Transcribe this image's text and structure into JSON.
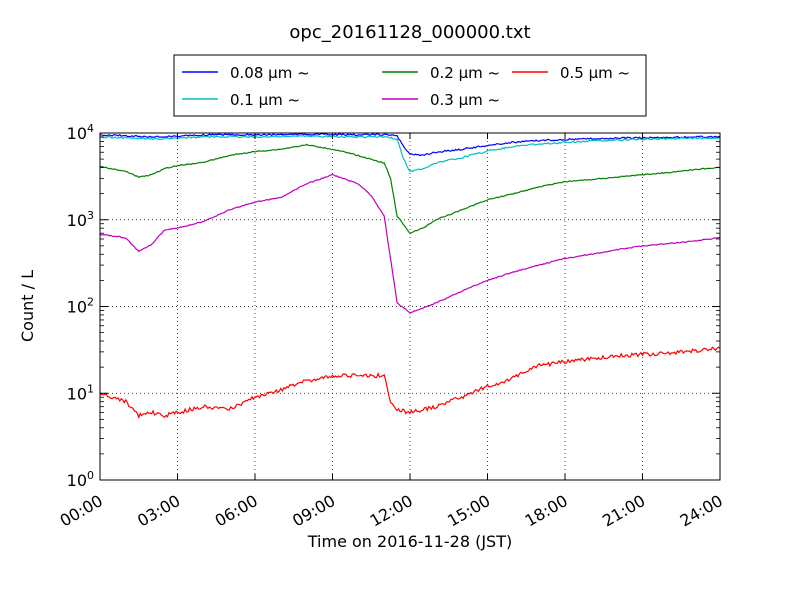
{
  "chart_data": {
    "type": "line",
    "title": "opc_20161128_000000.txt",
    "xlabel": "Time on 2016-11-28 (JST)",
    "ylabel": "Count / L",
    "xlim": [
      "00:00",
      "24:00"
    ],
    "ylim": [
      1,
      10000
    ],
    "yscale": "log",
    "grid": true,
    "legend_position": "top-center",
    "xticks": [
      "00:00",
      "03:00",
      "06:00",
      "09:00",
      "12:00",
      "15:00",
      "18:00",
      "21:00",
      "24:00"
    ],
    "yticks": [
      {
        "base": "10",
        "exp": "0",
        "value": 1
      },
      {
        "base": "10",
        "exp": "1",
        "value": 10
      },
      {
        "base": "10",
        "exp": "2",
        "value": 100
      },
      {
        "base": "10",
        "exp": "3",
        "value": 1000
      },
      {
        "base": "10",
        "exp": "4",
        "value": 10000
      }
    ],
    "series": [
      {
        "name": "0.08 μm ~",
        "color": "#0000ff",
        "points": [
          [
            "00:00",
            9500
          ],
          [
            "01:00",
            9300
          ],
          [
            "02:00",
            9000
          ],
          [
            "03:00",
            9200
          ],
          [
            "04:00",
            9500
          ],
          [
            "05:00",
            9600
          ],
          [
            "06:00",
            9500
          ],
          [
            "07:00",
            9600
          ],
          [
            "08:00",
            9700
          ],
          [
            "09:00",
            9600
          ],
          [
            "10:00",
            9500
          ],
          [
            "11:00",
            9600
          ],
          [
            "11:30",
            9200
          ],
          [
            "11:45",
            7000
          ],
          [
            "12:00",
            5800
          ],
          [
            "12:30",
            5500
          ],
          [
            "13:00",
            6000
          ],
          [
            "14:00",
            6500
          ],
          [
            "15:00",
            7200
          ],
          [
            "16:00",
            7800
          ],
          [
            "17:00",
            8200
          ],
          [
            "18:00",
            8400
          ],
          [
            "19:00",
            8600
          ],
          [
            "20:00",
            8700
          ],
          [
            "21:00",
            8800
          ],
          [
            "22:00",
            8900
          ],
          [
            "23:00",
            9000
          ],
          [
            "24:00",
            9100
          ]
        ]
      },
      {
        "name": "0.1 μm ~",
        "color": "#00bfbf",
        "points": [
          [
            "00:00",
            9000
          ],
          [
            "01:00",
            8800
          ],
          [
            "02:00",
            8500
          ],
          [
            "03:00",
            8700
          ],
          [
            "04:00",
            9000
          ],
          [
            "05:00",
            9100
          ],
          [
            "06:00",
            9000
          ],
          [
            "07:00",
            9100
          ],
          [
            "08:00",
            9200
          ],
          [
            "09:00",
            9100
          ],
          [
            "10:00",
            9000
          ],
          [
            "11:00",
            9100
          ],
          [
            "11:30",
            8500
          ],
          [
            "11:45",
            5000
          ],
          [
            "12:00",
            3600
          ],
          [
            "12:30",
            3900
          ],
          [
            "13:00",
            4500
          ],
          [
            "14:00",
            5200
          ],
          [
            "15:00",
            6200
          ],
          [
            "16:00",
            7000
          ],
          [
            "17:00",
            7500
          ],
          [
            "18:00",
            7800
          ],
          [
            "19:00",
            8100
          ],
          [
            "20:00",
            8300
          ],
          [
            "21:00",
            8500
          ],
          [
            "22:00",
            8600
          ],
          [
            "23:00",
            8700
          ],
          [
            "24:00",
            8800
          ]
        ]
      },
      {
        "name": "0.2 μm ~",
        "color": "#008000",
        "points": [
          [
            "00:00",
            4100
          ],
          [
            "01:00",
            3600
          ],
          [
            "01:30",
            3100
          ],
          [
            "02:00",
            3300
          ],
          [
            "02:30",
            3900
          ],
          [
            "03:00",
            4200
          ],
          [
            "04:00",
            4600
          ],
          [
            "05:00",
            5500
          ],
          [
            "06:00",
            6100
          ],
          [
            "07:00",
            6500
          ],
          [
            "08:00",
            7300
          ],
          [
            "09:00",
            6500
          ],
          [
            "10:00",
            5500
          ],
          [
            "11:00",
            4500
          ],
          [
            "11:15",
            3000
          ],
          [
            "11:30",
            1100
          ],
          [
            "12:00",
            700
          ],
          [
            "12:30",
            800
          ],
          [
            "13:00",
            1000
          ],
          [
            "14:00",
            1300
          ],
          [
            "15:00",
            1700
          ],
          [
            "16:00",
            2000
          ],
          [
            "17:00",
            2400
          ],
          [
            "18:00",
            2750
          ],
          [
            "19:00",
            2900
          ],
          [
            "20:00",
            3100
          ],
          [
            "21:00",
            3300
          ],
          [
            "22:00",
            3500
          ],
          [
            "23:00",
            3800
          ],
          [
            "24:00",
            4000
          ]
        ]
      },
      {
        "name": "0.3 μm ~",
        "color": "#bf00bf",
        "points": [
          [
            "00:00",
            680
          ],
          [
            "01:00",
            620
          ],
          [
            "01:30",
            430
          ],
          [
            "02:00",
            520
          ],
          [
            "02:30",
            760
          ],
          [
            "03:00",
            800
          ],
          [
            "04:00",
            950
          ],
          [
            "05:00",
            1300
          ],
          [
            "06:00",
            1600
          ],
          [
            "07:00",
            1800
          ],
          [
            "08:00",
            2600
          ],
          [
            "09:00",
            3300
          ],
          [
            "10:00",
            2600
          ],
          [
            "10:30",
            1900
          ],
          [
            "11:00",
            1100
          ],
          [
            "11:15",
            350
          ],
          [
            "11:30",
            110
          ],
          [
            "12:00",
            85
          ],
          [
            "12:30",
            95
          ],
          [
            "13:00",
            110
          ],
          [
            "14:00",
            150
          ],
          [
            "15:00",
            200
          ],
          [
            "16:00",
            250
          ],
          [
            "17:00",
            300
          ],
          [
            "18:00",
            360
          ],
          [
            "19:00",
            400
          ],
          [
            "20:00",
            450
          ],
          [
            "21:00",
            500
          ],
          [
            "22:00",
            530
          ],
          [
            "23:00",
            570
          ],
          [
            "24:00",
            620
          ]
        ]
      },
      {
        "name": "0.5 μm ~",
        "color": "#ff0000",
        "points": [
          [
            "00:00",
            10
          ],
          [
            "01:00",
            8
          ],
          [
            "01:30",
            5.5
          ],
          [
            "02:00",
            6
          ],
          [
            "02:30",
            5.5
          ],
          [
            "03:00",
            6
          ],
          [
            "04:00",
            7
          ],
          [
            "05:00",
            6.5
          ],
          [
            "06:00",
            9
          ],
          [
            "07:00",
            11
          ],
          [
            "08:00",
            14
          ],
          [
            "09:00",
            16
          ],
          [
            "10:00",
            16
          ],
          [
            "11:00",
            16
          ],
          [
            "11:15",
            8
          ],
          [
            "11:30",
            6.5
          ],
          [
            "12:00",
            6
          ],
          [
            "12:30",
            6.5
          ],
          [
            "13:00",
            7
          ],
          [
            "14:00",
            9
          ],
          [
            "15:00",
            12
          ],
          [
            "16:00",
            15
          ],
          [
            "17:00",
            21
          ],
          [
            "18:00",
            23
          ],
          [
            "19:00",
            25
          ],
          [
            "20:00",
            27
          ],
          [
            "21:00",
            28
          ],
          [
            "22:00",
            29
          ],
          [
            "23:00",
            31
          ],
          [
            "24:00",
            33
          ]
        ]
      }
    ]
  }
}
